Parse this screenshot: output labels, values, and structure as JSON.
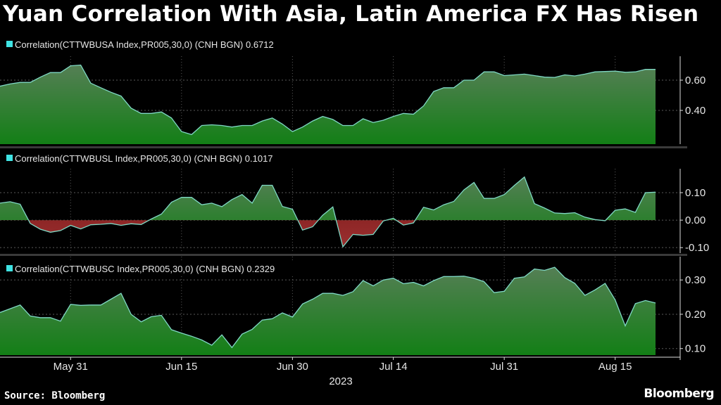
{
  "chart_data": [
    {
      "type": "area",
      "title": "Yuan Correlation With Asia, Latin America FX Has Risen",
      "legend": "Correlation(CTTWBUSA Index,PR005,30,0) (CNH BGN) 0.6712",
      "yticks": [
        0.4,
        0.6
      ],
      "ytick_labels": [
        "0.40",
        "0.60"
      ],
      "ylim": [
        0.177,
        0.758
      ],
      "grid": true,
      "values": [
        0.56,
        0.575,
        0.585,
        0.585,
        0.62,
        0.65,
        0.65,
        0.695,
        0.7,
        0.58,
        0.55,
        0.52,
        0.495,
        0.415,
        0.38,
        0.38,
        0.39,
        0.35,
        0.26,
        0.24,
        0.3,
        0.305,
        0.3,
        0.29,
        0.3,
        0.3,
        0.33,
        0.35,
        0.31,
        0.26,
        0.29,
        0.33,
        0.36,
        0.34,
        0.3,
        0.3,
        0.345,
        0.32,
        0.335,
        0.36,
        0.38,
        0.375,
        0.43,
        0.525,
        0.55,
        0.55,
        0.6,
        0.6,
        0.655,
        0.655,
        0.63,
        0.635,
        0.64,
        0.63,
        0.62,
        0.618,
        0.635,
        0.628,
        0.64,
        0.655,
        0.657,
        0.66,
        0.652,
        0.655,
        0.671,
        0.6712
      ]
    },
    {
      "type": "area",
      "legend": "Correlation(CTTWBUSL Index,PR005,30,0) (CNH BGN) 0.1017",
      "yticks": [
        -0.1,
        0.0,
        0.1
      ],
      "ytick_labels": [
        "-0.10",
        "0.00",
        "0.10"
      ],
      "ylim": [
        -0.12,
        0.187
      ],
      "grid": true,
      "values": [
        0.062,
        0.067,
        0.058,
        -0.012,
        -0.033,
        -0.044,
        -0.038,
        -0.019,
        -0.032,
        -0.017,
        -0.015,
        -0.012,
        -0.019,
        -0.013,
        -0.016,
        0.004,
        0.022,
        0.065,
        0.083,
        0.083,
        0.056,
        0.062,
        0.049,
        0.075,
        0.093,
        0.062,
        0.127,
        0.127,
        0.05,
        0.04,
        -0.036,
        -0.024,
        0.018,
        0.048,
        -0.097,
        -0.052,
        -0.055,
        -0.052,
        -0.003,
        0.007,
        -0.018,
        -0.01,
        0.047,
        0.037,
        0.056,
        0.068,
        0.11,
        0.137,
        0.079,
        0.079,
        0.093,
        0.126,
        0.157,
        0.06,
        0.044,
        0.026,
        0.024,
        0.027,
        0.011,
        0.002,
        -0.002,
        0.036,
        0.041,
        0.028,
        0.1,
        0.1017
      ]
    },
    {
      "type": "area",
      "legend": "Correlation(CTTWBUSC Index,PR005,30,0) (CNH BGN) 0.2329",
      "yticks": [
        0.1,
        0.2,
        0.3
      ],
      "ytick_labels": [
        "0.10",
        "0.20",
        "0.30"
      ],
      "ylim": [
        0.081,
        0.368
      ],
      "grid": true,
      "values": [
        0.205,
        0.216,
        0.227,
        0.195,
        0.19,
        0.19,
        0.18,
        0.229,
        0.226,
        0.227,
        0.227,
        0.244,
        0.261,
        0.2,
        0.178,
        0.193,
        0.197,
        0.155,
        0.145,
        0.136,
        0.125,
        0.11,
        0.14,
        0.103,
        0.142,
        0.156,
        0.183,
        0.187,
        0.204,
        0.192,
        0.23,
        0.244,
        0.261,
        0.261,
        0.255,
        0.266,
        0.298,
        0.283,
        0.3,
        0.305,
        0.289,
        0.293,
        0.283,
        0.298,
        0.31,
        0.31,
        0.311,
        0.305,
        0.295,
        0.263,
        0.267,
        0.305,
        0.309,
        0.332,
        0.328,
        0.337,
        0.307,
        0.29,
        0.255,
        0.271,
        0.29,
        0.242,
        0.166,
        0.231,
        0.24,
        0.2329
      ]
    }
  ],
  "x_axis": {
    "dates": [
      "2023-05-22",
      "2023-05-23",
      "2023-05-24",
      "2023-05-25",
      "2023-05-26",
      "2023-05-29",
      "2023-05-30",
      "2023-05-31",
      "2023-06-01",
      "2023-06-02",
      "2023-06-05",
      "2023-06-06",
      "2023-06-07",
      "2023-06-08",
      "2023-06-09",
      "2023-06-12",
      "2023-06-13",
      "2023-06-14",
      "2023-06-15",
      "2023-06-16",
      "2023-06-19",
      "2023-06-20",
      "2023-06-21",
      "2023-06-22",
      "2023-06-23",
      "2023-06-26",
      "2023-06-27",
      "2023-06-28",
      "2023-06-29",
      "2023-06-30",
      "2023-07-03",
      "2023-07-04",
      "2023-07-05",
      "2023-07-06",
      "2023-07-07",
      "2023-07-10",
      "2023-07-11",
      "2023-07-12",
      "2023-07-13",
      "2023-07-14",
      "2023-07-17",
      "2023-07-18",
      "2023-07-19",
      "2023-07-20",
      "2023-07-21",
      "2023-07-24",
      "2023-07-25",
      "2023-07-26",
      "2023-07-27",
      "2023-07-28",
      "2023-07-31",
      "2023-08-01",
      "2023-08-02",
      "2023-08-03",
      "2023-08-04",
      "2023-08-07",
      "2023-08-08",
      "2023-08-09",
      "2023-08-10",
      "2023-08-11",
      "2023-08-14",
      "2023-08-15",
      "2023-08-16",
      "2023-08-17",
      "2023-08-18",
      "2023-08-21"
    ],
    "ticks": [
      {
        "date": "2023-05-31",
        "label": "May 31"
      },
      {
        "date": "2023-06-15",
        "label": "Jun 15"
      },
      {
        "date": "2023-06-30",
        "label": "Jun 30"
      },
      {
        "date": "2023-07-14",
        "label": "Jul 14"
      },
      {
        "date": "2023-07-31",
        "label": "Jul 31"
      },
      {
        "date": "2023-08-15",
        "label": "Aug 15"
      }
    ],
    "year_label": "2023"
  },
  "colors": {
    "background": "#000000",
    "line": "#7fd8c4",
    "fill_positive_top": "#4f7f4f",
    "fill_positive_bottom": "#17801a",
    "fill_negative": "#8e1a1a",
    "legend_marker": "#3fe3e3",
    "grid": "#5a5a5a"
  },
  "footer": {
    "source": "Source: Bloomberg",
    "brand": "Bloomberg"
  }
}
